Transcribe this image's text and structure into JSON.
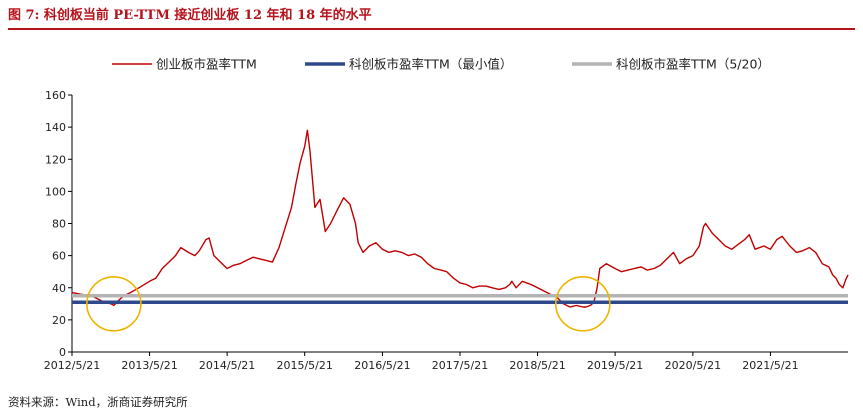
{
  "figure_title": "图 7: 科创板当前 PE-TTM 接近创业板 12 年和 18 年的水平",
  "source": "资料来源：Wind，浙商证券研究所",
  "chart_data": {
    "type": "line",
    "title": "",
    "xlabel": "",
    "ylabel": "",
    "ylim": [
      0,
      160
    ],
    "yticks": [
      0,
      20,
      40,
      60,
      80,
      100,
      120,
      140,
      160
    ],
    "xticks": [
      "2012/5/21",
      "2013/5/21",
      "2014/5/21",
      "2015/5/21",
      "2016/5/21",
      "2017/5/21",
      "2018/5/21",
      "2019/5/21",
      "2020/5/21",
      "2021/5/21"
    ],
    "xrange": [
      "2012-05-21",
      "2022-05-21"
    ],
    "grid": false,
    "legend_position": "top",
    "series": [
      {
        "name": "创业板市盈率TTM",
        "color": "#c00000",
        "points": [
          [
            "2012-05-21",
            37
          ],
          [
            "2012-07-01",
            36
          ],
          [
            "2012-08-20",
            35
          ],
          [
            "2012-09-20",
            33
          ],
          [
            "2012-10-20",
            31
          ],
          [
            "2012-11-20",
            30
          ],
          [
            "2012-12-04",
            29
          ],
          [
            "2012-12-25",
            32
          ],
          [
            "2013-01-20",
            35
          ],
          [
            "2013-02-20",
            37
          ],
          [
            "2013-04-01",
            40
          ],
          [
            "2013-05-21",
            44
          ],
          [
            "2013-06-20",
            46
          ],
          [
            "2013-07-20",
            52
          ],
          [
            "2013-08-20",
            56
          ],
          [
            "2013-09-20",
            60
          ],
          [
            "2013-10-15",
            65
          ],
          [
            "2013-11-20",
            62
          ],
          [
            "2013-12-20",
            60
          ],
          [
            "2014-01-10",
            63
          ],
          [
            "2014-02-10",
            70
          ],
          [
            "2014-02-25",
            71
          ],
          [
            "2014-03-20",
            60
          ],
          [
            "2014-04-20",
            56
          ],
          [
            "2014-05-21",
            52
          ],
          [
            "2014-06-20",
            54
          ],
          [
            "2014-07-20",
            55
          ],
          [
            "2014-08-20",
            57
          ],
          [
            "2014-09-20",
            59
          ],
          [
            "2014-10-20",
            58
          ],
          [
            "2014-11-20",
            57
          ],
          [
            "2014-12-20",
            56
          ],
          [
            "2015-01-20",
            65
          ],
          [
            "2015-02-20",
            78
          ],
          [
            "2015-03-20",
            90
          ],
          [
            "2015-04-10",
            105
          ],
          [
            "2015-04-30",
            118
          ],
          [
            "2015-05-21",
            128
          ],
          [
            "2015-06-03",
            138
          ],
          [
            "2015-06-15",
            125
          ],
          [
            "2015-07-08",
            90
          ],
          [
            "2015-08-01",
            95
          ],
          [
            "2015-08-26",
            75
          ],
          [
            "2015-09-20",
            80
          ],
          [
            "2015-10-20",
            88
          ],
          [
            "2015-11-20",
            96
          ],
          [
            "2015-12-20",
            92
          ],
          [
            "2016-01-15",
            80
          ],
          [
            "2016-01-28",
            68
          ],
          [
            "2016-02-20",
            62
          ],
          [
            "2016-03-20",
            66
          ],
          [
            "2016-04-20",
            68
          ],
          [
            "2016-05-21",
            64
          ],
          [
            "2016-06-20",
            62
          ],
          [
            "2016-07-20",
            63
          ],
          [
            "2016-08-20",
            62
          ],
          [
            "2016-09-20",
            60
          ],
          [
            "2016-10-20",
            61
          ],
          [
            "2016-11-20",
            59
          ],
          [
            "2016-12-20",
            55
          ],
          [
            "2017-01-20",
            52
          ],
          [
            "2017-02-20",
            51
          ],
          [
            "2017-03-20",
            50
          ],
          [
            "2017-04-20",
            46
          ],
          [
            "2017-05-21",
            43
          ],
          [
            "2017-06-20",
            42
          ],
          [
            "2017-07-20",
            40
          ],
          [
            "2017-08-20",
            41
          ],
          [
            "2017-09-20",
            41
          ],
          [
            "2017-10-20",
            40
          ],
          [
            "2017-11-20",
            39
          ],
          [
            "2017-12-20",
            40
          ],
          [
            "2018-01-10",
            42
          ],
          [
            "2018-01-20",
            44
          ],
          [
            "2018-02-09",
            40
          ],
          [
            "2018-03-10",
            44
          ],
          [
            "2018-04-20",
            42
          ],
          [
            "2018-05-21",
            40
          ],
          [
            "2018-06-20",
            38
          ],
          [
            "2018-07-20",
            36
          ],
          [
            "2018-08-20",
            34
          ],
          [
            "2018-09-20",
            30
          ],
          [
            "2018-10-20",
            28
          ],
          [
            "2018-11-20",
            29
          ],
          [
            "2018-12-20",
            28
          ],
          [
            "2019-01-04",
            28
          ],
          [
            "2019-01-25",
            29
          ],
          [
            "2019-02-10",
            31
          ],
          [
            "2019-02-25",
            40
          ],
          [
            "2019-03-10",
            52
          ],
          [
            "2019-04-10",
            55
          ],
          [
            "2019-05-21",
            52
          ],
          [
            "2019-06-20",
            50
          ],
          [
            "2019-07-20",
            51
          ],
          [
            "2019-08-20",
            52
          ],
          [
            "2019-09-20",
            53
          ],
          [
            "2019-10-20",
            51
          ],
          [
            "2019-11-20",
            52
          ],
          [
            "2019-12-20",
            54
          ],
          [
            "2020-01-20",
            58
          ],
          [
            "2020-02-20",
            62
          ],
          [
            "2020-03-20",
            55
          ],
          [
            "2020-04-20",
            58
          ],
          [
            "2020-05-21",
            60
          ],
          [
            "2020-06-20",
            66
          ],
          [
            "2020-07-10",
            78
          ],
          [
            "2020-07-20",
            80
          ],
          [
            "2020-08-20",
            74
          ],
          [
            "2020-09-20",
            70
          ],
          [
            "2020-10-20",
            66
          ],
          [
            "2020-11-20",
            64
          ],
          [
            "2020-12-20",
            67
          ],
          [
            "2021-01-20",
            70
          ],
          [
            "2021-02-10",
            73
          ],
          [
            "2021-03-10",
            64
          ],
          [
            "2021-04-20",
            66
          ],
          [
            "2021-05-21",
            64
          ],
          [
            "2021-06-20",
            70
          ],
          [
            "2021-07-15",
            72
          ],
          [
            "2021-08-20",
            66
          ],
          [
            "2021-09-20",
            62
          ],
          [
            "2021-10-20",
            63
          ],
          [
            "2021-11-20",
            65
          ],
          [
            "2021-12-20",
            62
          ],
          [
            "2022-01-20",
            55
          ],
          [
            "2022-02-20",
            53
          ],
          [
            "2022-03-10",
            48
          ],
          [
            "2022-03-25",
            46
          ],
          [
            "2022-04-10",
            42
          ],
          [
            "2022-04-27",
            40
          ],
          [
            "2022-05-10",
            45
          ],
          [
            "2022-05-21",
            48
          ]
        ]
      },
      {
        "name": "科创板市盈率TTM（最小值）",
        "color": "#2e4a8c",
        "constant": 31
      },
      {
        "name": "科创板市盈率TTM（5/20）",
        "color": "#b4b4b4",
        "constant": 35
      }
    ],
    "annotations": [
      {
        "type": "circle",
        "color": "#f0b400",
        "center": [
          "2012-12-04",
          30
        ]
      },
      {
        "type": "circle",
        "color": "#f0b400",
        "center": [
          "2018-12-20",
          30
        ]
      }
    ]
  }
}
